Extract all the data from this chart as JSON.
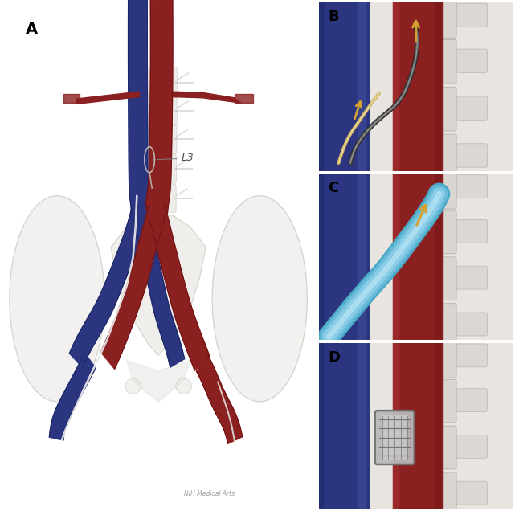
{
  "figure_size": [
    6.41,
    6.41
  ],
  "dpi": 100,
  "background": "#ffffff",
  "panel_A": {
    "label": "A",
    "artery_color": "#8B2020",
    "artery_dark": "#6B1010",
    "vein_color": "#2B3580",
    "vein_dark": "#1A2560",
    "bone_color": "#D8D5CF",
    "bone_edge": "#B8B5AF",
    "bone_light": "#E8E6E2"
  },
  "panel_B": {
    "label": "B",
    "arrow_color": "#D4A030",
    "catheter_dark": "#383838",
    "catheter_light": "#C8B878"
  },
  "panel_C": {
    "label": "C",
    "arrow_color": "#D4A030",
    "sheath_outer": "#6BBCD8",
    "sheath_inner": "#A8DCF0",
    "sheath_mid": "#88CCE8"
  },
  "panel_D": {
    "label": "D",
    "device_color": "#A8A8A8",
    "device_dark": "#686868"
  },
  "signature": "NIH Medical Arts"
}
